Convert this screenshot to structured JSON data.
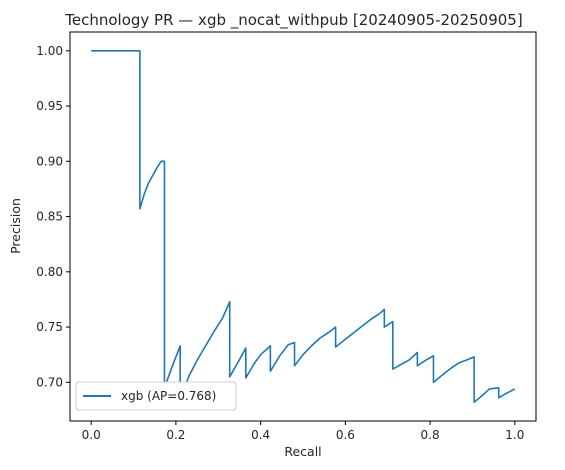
{
  "chart_data": {
    "type": "line",
    "title": "Technology PR — xgb _nocat_withpub [20240905-20250905]",
    "xlabel": "Recall",
    "ylabel": "Precision",
    "xlim": [
      -0.05,
      1.05
    ],
    "ylim": [
      0.665,
      1.017
    ],
    "x_ticks": [
      0.0,
      0.2,
      0.4,
      0.6,
      0.8,
      1.0
    ],
    "x_tick_labels": [
      "0.0",
      "0.2",
      "0.4",
      "0.6",
      "0.8",
      "1.0"
    ],
    "y_ticks": [
      0.7,
      0.75,
      0.8,
      0.85,
      0.9,
      0.95,
      1.0
    ],
    "y_tick_labels": [
      "0.70",
      "0.75",
      "0.80",
      "0.85",
      "0.90",
      "0.95",
      "1.00"
    ],
    "grid": false,
    "legend": {
      "position": "lower-left"
    },
    "series": [
      {
        "name": "xgb (AP=0.768)",
        "color": "#1f77b4",
        "x": [
          0.0,
          0.115,
          0.115,
          0.125,
          0.135,
          0.145,
          0.155,
          0.165,
          0.173,
          0.173,
          0.19,
          0.21,
          0.21,
          0.215,
          0.23,
          0.25,
          0.27,
          0.29,
          0.31,
          0.327,
          0.327,
          0.345,
          0.365,
          0.365,
          0.385,
          0.4,
          0.423,
          0.423,
          0.445,
          0.465,
          0.48,
          0.48,
          0.5,
          0.52,
          0.54,
          0.56,
          0.577,
          0.577,
          0.6,
          0.62,
          0.64,
          0.66,
          0.68,
          0.692,
          0.692,
          0.7,
          0.712,
          0.712,
          0.735,
          0.75,
          0.77,
          0.77,
          0.79,
          0.808,
          0.808,
          0.83,
          0.85,
          0.87,
          0.885,
          0.904,
          0.904,
          0.92,
          0.94,
          0.962,
          0.962,
          0.98,
          1.0
        ],
        "y": [
          1.0,
          1.0,
          0.857,
          0.87,
          0.88,
          0.887,
          0.894,
          0.9,
          0.9,
          0.695,
          0.713,
          0.733,
          0.685,
          0.69,
          0.705,
          0.72,
          0.733,
          0.746,
          0.758,
          0.773,
          0.705,
          0.717,
          0.731,
          0.704,
          0.717,
          0.725,
          0.733,
          0.71,
          0.724,
          0.734,
          0.736,
          0.715,
          0.725,
          0.733,
          0.74,
          0.745,
          0.75,
          0.732,
          0.739,
          0.745,
          0.751,
          0.757,
          0.762,
          0.766,
          0.75,
          0.752,
          0.755,
          0.712,
          0.717,
          0.72,
          0.727,
          0.715,
          0.72,
          0.724,
          0.7,
          0.707,
          0.713,
          0.718,
          0.72,
          0.723,
          0.682,
          0.687,
          0.694,
          0.695,
          0.686,
          0.69,
          0.694
        ]
      }
    ]
  }
}
